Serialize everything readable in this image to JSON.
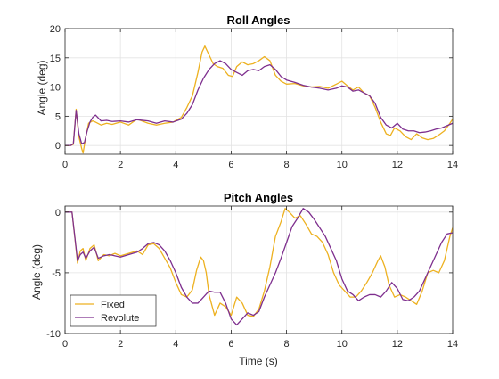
{
  "colors": {
    "fixed": "#EDB120",
    "revolute": "#7E2F8E",
    "grid": "#e3e3e3",
    "axis": "#262626"
  },
  "chart_data": [
    {
      "type": "line",
      "title": "Roll Angles",
      "xlabel": "",
      "ylabel": "Angle (deg)",
      "xlim": [
        0,
        14
      ],
      "ylim": [
        -1.5,
        20
      ],
      "xticks": [
        0,
        2,
        4,
        6,
        8,
        10,
        12,
        14
      ],
      "yticks": [
        0,
        5,
        10,
        15,
        20
      ],
      "grid": true,
      "series": [
        {
          "name": "Fixed",
          "color": "#EDB120",
          "x": [
            0,
            0.2,
            0.3,
            0.4,
            0.5,
            0.6,
            0.65,
            0.75,
            0.85,
            1.0,
            1.1,
            1.3,
            1.5,
            1.7,
            2.0,
            2.3,
            2.6,
            3.0,
            3.3,
            3.6,
            3.9,
            4.2,
            4.4,
            4.6,
            4.8,
            4.95,
            5.05,
            5.2,
            5.35,
            5.5,
            5.7,
            5.9,
            6.05,
            6.2,
            6.4,
            6.6,
            6.8,
            7.0,
            7.2,
            7.4,
            7.6,
            7.8,
            8.0,
            8.3,
            8.6,
            8.9,
            9.2,
            9.5,
            9.8,
            10.0,
            10.2,
            10.4,
            10.6,
            10.8,
            11.0,
            11.2,
            11.4,
            11.6,
            11.75,
            11.9,
            12.1,
            12.3,
            12.5,
            12.7,
            12.9,
            13.1,
            13.3,
            13.5,
            13.7,
            13.9,
            14.0
          ],
          "y": [
            0,
            0,
            0.2,
            6.2,
            1.5,
            -0.5,
            -1.3,
            1.5,
            3.8,
            4.2,
            4.0,
            3.5,
            3.8,
            3.6,
            4.0,
            3.5,
            4.5,
            3.8,
            3.5,
            3.8,
            4.0,
            4.8,
            6.5,
            8.5,
            12.5,
            16.0,
            17.0,
            15.5,
            14.0,
            13.5,
            13.2,
            12.0,
            11.8,
            13.5,
            14.3,
            13.8,
            14.0,
            14.5,
            15.2,
            14.5,
            12.0,
            11.0,
            10.5,
            10.6,
            10.2,
            10.0,
            10.1,
            9.8,
            10.5,
            11.0,
            10.2,
            9.5,
            10.0,
            9.0,
            8.5,
            6.5,
            4.0,
            2.0,
            1.7,
            3.0,
            2.5,
            1.5,
            1.0,
            2.0,
            1.3,
            1.0,
            1.2,
            1.8,
            2.5,
            3.8,
            4.5
          ]
        },
        {
          "name": "Revolute",
          "color": "#7E2F8E",
          "x": [
            0,
            0.2,
            0.3,
            0.4,
            0.5,
            0.6,
            0.7,
            0.8,
            0.9,
            1.0,
            1.1,
            1.3,
            1.5,
            1.7,
            2.0,
            2.3,
            2.6,
            3.0,
            3.3,
            3.6,
            3.9,
            4.2,
            4.4,
            4.6,
            4.8,
            5.0,
            5.2,
            5.4,
            5.6,
            5.8,
            6.0,
            6.2,
            6.4,
            6.6,
            6.8,
            7.0,
            7.2,
            7.4,
            7.6,
            7.8,
            8.0,
            8.3,
            8.6,
            8.9,
            9.2,
            9.5,
            9.8,
            10.0,
            10.2,
            10.4,
            10.6,
            10.8,
            11.0,
            11.2,
            11.4,
            11.6,
            11.8,
            12.0,
            12.2,
            12.4,
            12.6,
            12.8,
            13.0,
            13.2,
            13.4,
            13.6,
            13.8,
            14.0
          ],
          "y": [
            0,
            0,
            0.3,
            6.0,
            2.0,
            0.3,
            0.5,
            2.5,
            4.0,
            4.8,
            5.2,
            4.2,
            4.3,
            4.1,
            4.2,
            4.0,
            4.4,
            4.2,
            3.8,
            4.2,
            4.0,
            4.5,
            5.5,
            7.0,
            9.5,
            11.5,
            13.0,
            14.0,
            14.5,
            14.0,
            13.0,
            12.5,
            12.0,
            12.8,
            13.0,
            12.8,
            13.5,
            13.8,
            13.0,
            11.8,
            11.2,
            10.8,
            10.3,
            10.0,
            9.8,
            9.5,
            9.8,
            10.2,
            10.0,
            9.3,
            9.5,
            9.0,
            8.5,
            7.2,
            4.8,
            3.5,
            3.0,
            3.8,
            2.8,
            2.5,
            2.5,
            2.2,
            2.3,
            2.5,
            2.8,
            3.0,
            3.4,
            3.8
          ]
        }
      ]
    },
    {
      "type": "line",
      "title": "Pitch Angles",
      "xlabel": "Time (s)",
      "ylabel": "Angle (deg)",
      "xlim": [
        0,
        14
      ],
      "ylim": [
        -10,
        0.5
      ],
      "xticks": [
        0,
        2,
        4,
        6,
        8,
        10,
        12,
        14
      ],
      "yticks": [
        -10,
        -5,
        0
      ],
      "grid": true,
      "legend": {
        "position": "bottom-left",
        "entries": [
          "Fixed",
          "Revolute"
        ]
      },
      "series": [
        {
          "name": "Fixed",
          "color": "#EDB120",
          "x": [
            0,
            0.25,
            0.35,
            0.45,
            0.55,
            0.65,
            0.75,
            0.9,
            1.05,
            1.2,
            1.4,
            1.6,
            1.8,
            2.0,
            2.3,
            2.6,
            2.8,
            3.0,
            3.2,
            3.4,
            3.6,
            3.8,
            4.0,
            4.2,
            4.4,
            4.6,
            4.75,
            4.9,
            5.0,
            5.1,
            5.2,
            5.4,
            5.6,
            5.8,
            6.0,
            6.2,
            6.4,
            6.6,
            6.8,
            7.0,
            7.2,
            7.4,
            7.6,
            7.8,
            7.95,
            8.1,
            8.3,
            8.5,
            8.7,
            8.9,
            9.1,
            9.3,
            9.5,
            9.7,
            9.9,
            10.1,
            10.3,
            10.5,
            10.7,
            10.9,
            11.1,
            11.3,
            11.4,
            11.55,
            11.7,
            11.9,
            12.1,
            12.3,
            12.5,
            12.7,
            12.9,
            13.1,
            13.3,
            13.5,
            13.7,
            13.9,
            14.0
          ],
          "y": [
            0,
            0,
            -2.0,
            -4.2,
            -3.2,
            -3.0,
            -4.0,
            -3.0,
            -2.7,
            -4.0,
            -3.5,
            -3.6,
            -3.4,
            -3.6,
            -3.4,
            -3.2,
            -3.5,
            -2.7,
            -2.6,
            -3.0,
            -3.8,
            -4.6,
            -5.8,
            -6.8,
            -7.0,
            -6.4,
            -4.8,
            -3.7,
            -4.0,
            -5.0,
            -6.8,
            -8.5,
            -7.5,
            -7.8,
            -8.5,
            -7.0,
            -7.5,
            -8.5,
            -8.6,
            -8.0,
            -6.5,
            -4.5,
            -2.0,
            -0.8,
            0.3,
            0.0,
            -0.5,
            -0.3,
            -1.0,
            -1.8,
            -2.0,
            -2.5,
            -3.5,
            -5.0,
            -6.0,
            -6.5,
            -7.0,
            -7.0,
            -6.5,
            -5.8,
            -5.0,
            -4.0,
            -3.6,
            -4.5,
            -6.0,
            -7.0,
            -6.8,
            -7.0,
            -7.3,
            -7.6,
            -6.5,
            -5.0,
            -4.8,
            -5.0,
            -4.0,
            -2.0,
            -1.3
          ]
        },
        {
          "name": "Revolute",
          "color": "#7E2F8E",
          "x": [
            0,
            0.25,
            0.35,
            0.45,
            0.55,
            0.65,
            0.75,
            0.9,
            1.05,
            1.2,
            1.4,
            1.6,
            1.8,
            2.0,
            2.3,
            2.6,
            2.8,
            3.0,
            3.2,
            3.4,
            3.6,
            3.8,
            4.0,
            4.2,
            4.4,
            4.6,
            4.8,
            5.0,
            5.2,
            5.4,
            5.6,
            5.8,
            6.0,
            6.2,
            6.4,
            6.6,
            6.8,
            7.0,
            7.2,
            7.4,
            7.6,
            7.8,
            8.0,
            8.2,
            8.4,
            8.6,
            8.8,
            9.0,
            9.2,
            9.4,
            9.6,
            9.8,
            10.0,
            10.2,
            10.4,
            10.6,
            10.8,
            11.0,
            11.2,
            11.4,
            11.6,
            11.8,
            12.0,
            12.2,
            12.4,
            12.6,
            12.8,
            13.0,
            13.2,
            13.4,
            13.6,
            13.8,
            14.0
          ],
          "y": [
            0,
            0,
            -2.0,
            -4.0,
            -3.5,
            -3.3,
            -3.8,
            -3.2,
            -2.9,
            -3.8,
            -3.6,
            -3.5,
            -3.6,
            -3.7,
            -3.5,
            -3.3,
            -3.0,
            -2.6,
            -2.5,
            -2.7,
            -3.2,
            -4.0,
            -5.0,
            -6.2,
            -7.0,
            -7.5,
            -7.5,
            -7.0,
            -6.5,
            -6.6,
            -6.6,
            -7.5,
            -8.8,
            -9.3,
            -8.8,
            -8.3,
            -8.5,
            -8.2,
            -7.0,
            -6.0,
            -5.0,
            -3.8,
            -2.5,
            -1.2,
            -0.5,
            0.3,
            0.0,
            -0.6,
            -1.3,
            -2.0,
            -3.0,
            -4.0,
            -5.5,
            -6.5,
            -6.8,
            -7.3,
            -7.0,
            -6.8,
            -6.8,
            -7.0,
            -6.5,
            -5.8,
            -6.3,
            -7.2,
            -7.3,
            -7.0,
            -6.5,
            -5.5,
            -4.5,
            -3.5,
            -2.5,
            -1.8,
            -1.7
          ]
        }
      ]
    }
  ]
}
